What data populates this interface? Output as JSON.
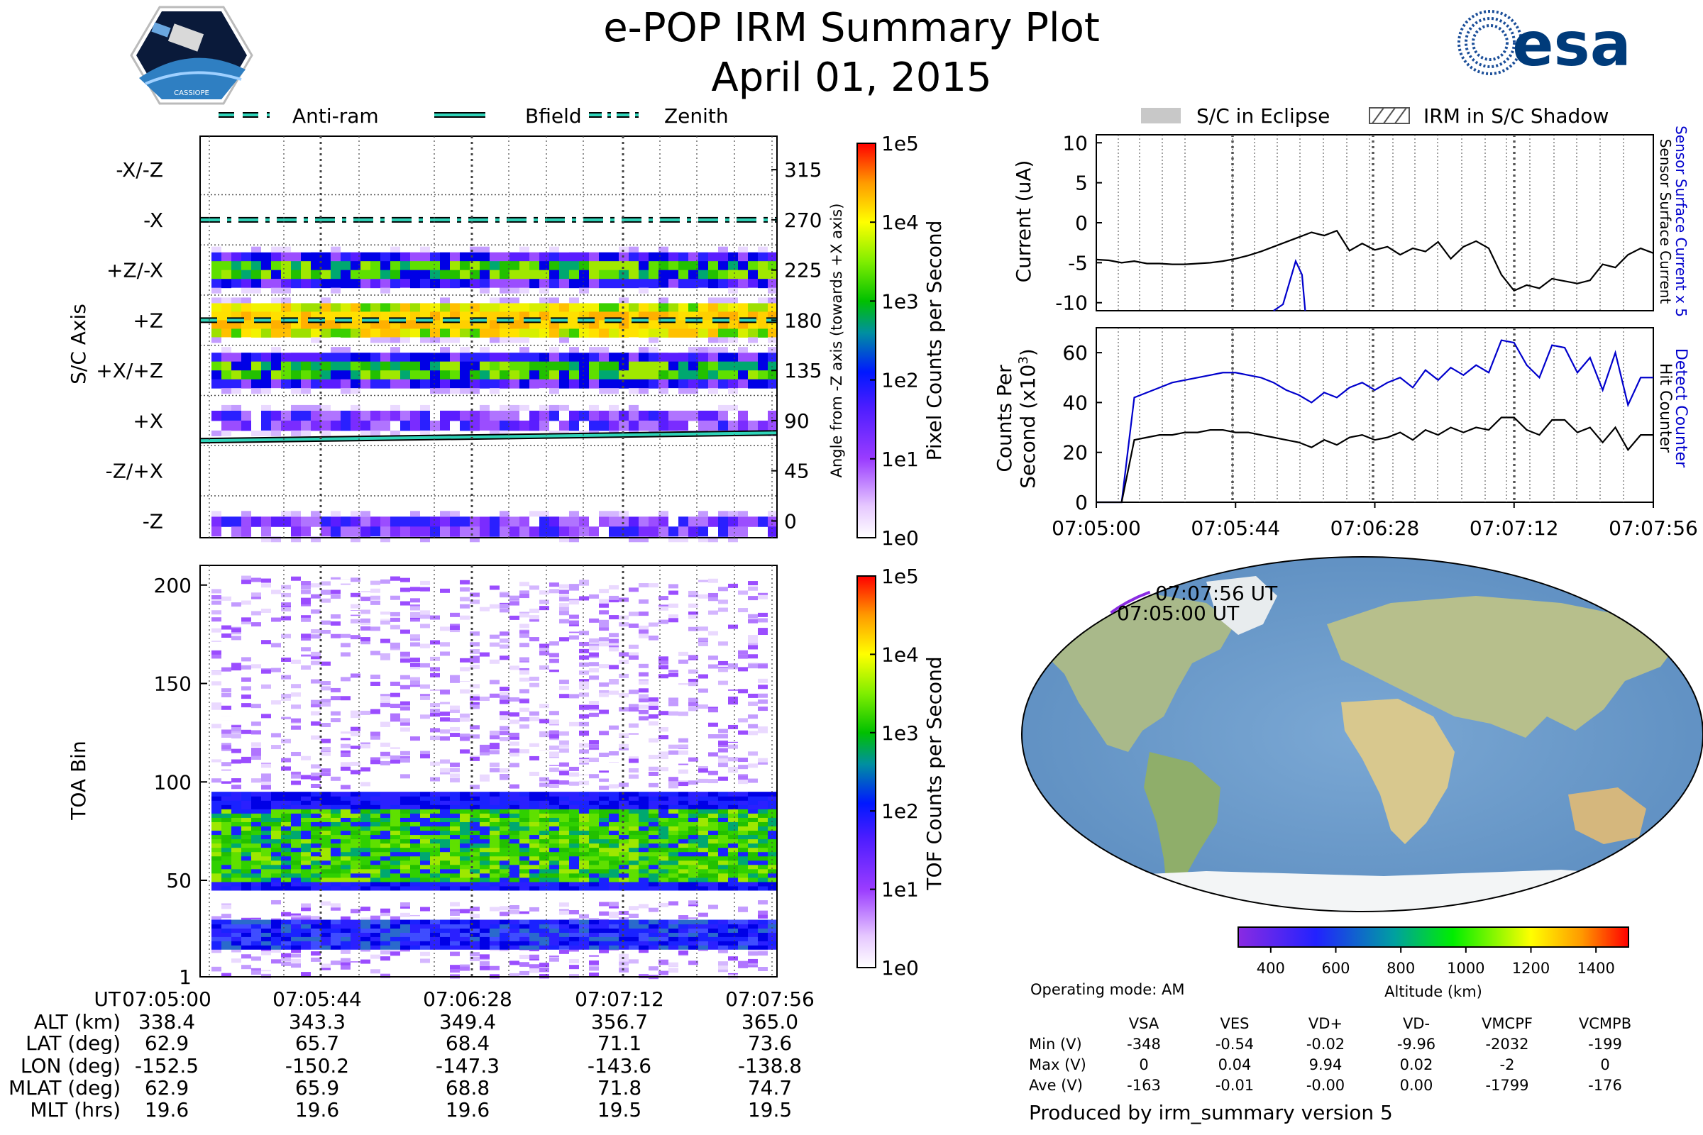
{
  "header": {
    "title": "e-POP IRM Summary Plot",
    "date": "April 01, 2015",
    "left_logo_text": "CASSIOPE",
    "right_logo_text": "esa"
  },
  "left_legend": [
    "Anti-ram",
    "Bfield",
    "Zenith"
  ],
  "right_legend": [
    "S/C in Eclipse",
    "IRM in S/C Shadow"
  ],
  "chart_data": [
    {
      "id": "sc_axis_panel",
      "type": "heatmap",
      "ylabel": "S/C Axis",
      "y2label": "Angle from -Z axis (towards +X axis)",
      "y_tick_labels": [
        "-X/-Z",
        "-X",
        "+Z/-X",
        "+Z",
        "+X/+Z",
        "+X",
        "-Z/+X",
        "-Z"
      ],
      "y2_ticks": [
        315,
        270,
        225,
        180,
        135,
        90,
        45,
        0
      ],
      "ylim": [
        -15,
        345
      ],
      "xlim": [
        "07:05:00",
        "07:07:56"
      ],
      "colorbar_label": "Pixel Counts per Second",
      "colorbar_ticks": [
        "1e5",
        "1e4",
        "1e3",
        "1e2",
        "1e1",
        "1e0"
      ],
      "bands": [
        {
          "angle": 225,
          "level": "mid"
        },
        {
          "angle": 180,
          "level": "high"
        },
        {
          "angle": 135,
          "level": "mid"
        },
        {
          "angle": 90,
          "level": "low"
        },
        {
          "angle": -5,
          "level": "low"
        }
      ],
      "lines": [
        {
          "name": "Zenith",
          "style": "dashdot",
          "angle": [
            270,
            270
          ]
        },
        {
          "name": "Anti-ram",
          "style": "dash",
          "angle": [
            180,
            180
          ]
        },
        {
          "name": "Bfield",
          "style": "solid",
          "angle": [
            72,
            79
          ]
        }
      ]
    },
    {
      "id": "toa_panel",
      "type": "heatmap",
      "ylabel": "TOA Bin",
      "y_ticks": [
        1,
        50,
        100,
        150,
        200
      ],
      "ylim": [
        1,
        210
      ],
      "xlim": [
        "07:05:00",
        "07:07:56"
      ],
      "colorbar_label": "TOF Counts per Second",
      "colorbar_ticks": [
        "1e5",
        "1e4",
        "1e3",
        "1e2",
        "1e1",
        "1e0"
      ],
      "bands": [
        {
          "from": 15,
          "to": 30,
          "level": "low"
        },
        {
          "from": 45,
          "to": 95,
          "level": "mid"
        }
      ]
    },
    {
      "id": "current_panel",
      "type": "line",
      "ylabel": "Current (uA)",
      "y2label_a": "Sensor Surface Current x 5",
      "y2label_b": "Sensor Surface Current",
      "y_ticks": [
        10,
        5,
        0,
        -5,
        -10
      ],
      "ylim": [
        -11,
        11
      ],
      "x_seconds": [
        0,
        4,
        8,
        12,
        16,
        20,
        24,
        28,
        32,
        36,
        40,
        44,
        48,
        52,
        56,
        60,
        64,
        68,
        72,
        76,
        80,
        84,
        88,
        92,
        96,
        100,
        104,
        108,
        112,
        116,
        120,
        124,
        128,
        132,
        136,
        140,
        144,
        148,
        152,
        156,
        160,
        164,
        168,
        172,
        176
      ],
      "series": [
        {
          "name": "Sensor Surface Current",
          "color": "#000000",
          "values": [
            -4.6,
            -4.7,
            -5.0,
            -4.8,
            -5.1,
            -5.1,
            -5.2,
            -5.2,
            -5.1,
            -5.0,
            -4.8,
            -4.5,
            -4.1,
            -3.6,
            -3.0,
            -2.4,
            -1.8,
            -1.2,
            -1.6,
            -1.0,
            -3.5,
            -2.6,
            -3.4,
            -3.0,
            -4.0,
            -3.2,
            -3.6,
            -2.4,
            -4.5,
            -3.0,
            -2.3,
            -3.2,
            -6.5,
            -8.5,
            -7.8,
            -8.2,
            -7.0,
            -7.3,
            -7.6,
            -7.2,
            -5.2,
            -5.6,
            -4.0,
            -3.2,
            -3.8
          ]
        },
        {
          "name": "Sensor Surface Current x 5",
          "color": "#0000cc",
          "x_seconds": [
            56,
            59,
            61,
            63,
            65,
            66
          ],
          "values": [
            -11.0,
            -10.2,
            -7.5,
            -4.8,
            -6.5,
            -11.0
          ]
        }
      ]
    },
    {
      "id": "counts_panel",
      "type": "line",
      "ylabel": "Counts Per Second (x10^3)",
      "y2label_a": "Detect Counter",
      "y2label_b": "Hit Counter",
      "y_ticks": [
        0,
        20,
        40,
        60
      ],
      "ylim": [
        0,
        70
      ],
      "xlim": [
        "07:05:00",
        "07:07:56"
      ],
      "x_tick_labels": [
        "07:05:00",
        "07:05:44",
        "07:06:28",
        "07:07:12",
        "07:07:56"
      ],
      "x_seconds": [
        0,
        4,
        8,
        12,
        16,
        20,
        24,
        28,
        32,
        36,
        40,
        44,
        48,
        52,
        56,
        60,
        64,
        68,
        72,
        76,
        80,
        84,
        88,
        92,
        96,
        100,
        104,
        108,
        112,
        116,
        120,
        124,
        128,
        132,
        136,
        140,
        144,
        148,
        152,
        156,
        160,
        164,
        168,
        172,
        176
      ],
      "series": [
        {
          "name": "Detect Counter",
          "color": "#0000cc",
          "values": [
            0,
            0,
            0,
            42,
            44,
            46,
            48,
            49,
            50,
            51,
            52,
            52,
            51,
            50,
            48,
            45,
            43,
            40,
            44,
            42,
            46,
            48,
            45,
            48,
            50,
            46,
            53,
            49,
            54,
            51,
            55,
            52,
            65,
            64,
            55,
            50,
            63,
            62,
            52,
            58,
            45,
            60,
            39,
            50,
            50
          ]
        },
        {
          "name": "Hit Counter",
          "color": "#000000",
          "values": [
            0,
            0,
            0,
            25,
            26,
            27,
            27,
            28,
            28,
            29,
            29,
            28,
            28,
            27,
            26,
            25,
            24,
            22,
            25,
            23,
            26,
            27,
            25,
            26,
            28,
            25,
            29,
            27,
            30,
            28,
            30,
            29,
            34,
            34,
            29,
            27,
            33,
            33,
            28,
            30,
            24,
            30,
            21,
            27,
            27
          ]
        }
      ]
    },
    {
      "id": "map_panel",
      "type": "scatter",
      "track_labels": [
        "07:07:56 UT",
        "07:05:00 UT"
      ],
      "track_lon": [
        -152.5,
        -150.2,
        -147.3,
        -143.6,
        -138.8
      ],
      "track_lat": [
        62.9,
        65.7,
        68.4,
        71.1,
        73.6
      ],
      "colorbar_label": "Altitude (km)",
      "colorbar_ticks": [
        400,
        600,
        800,
        1000,
        1200,
        1400
      ],
      "colorbar_range": [
        300,
        1500
      ]
    }
  ],
  "bottom_table": {
    "row_labels": [
      "UT",
      "ALT (km)",
      "LAT (deg)",
      "LON (deg)",
      "MLAT (deg)",
      "MLT (hrs)"
    ],
    "columns": [
      [
        "07:05:00",
        "338.4",
        "62.9",
        "-152.5",
        "62.9",
        "19.6"
      ],
      [
        "07:05:44",
        "343.3",
        "65.7",
        "-150.2",
        "65.9",
        "19.6"
      ],
      [
        "07:06:28",
        "349.4",
        "68.4",
        "-147.3",
        "68.8",
        "19.6"
      ],
      [
        "07:07:12",
        "356.7",
        "71.1",
        "-143.6",
        "71.8",
        "19.5"
      ],
      [
        "07:07:56",
        "365.0",
        "73.6",
        "-138.8",
        "74.7",
        "19.5"
      ]
    ]
  },
  "voltages": {
    "operating_mode": "Operating mode: AM",
    "headers": [
      "VSA",
      "VES",
      "VD+",
      "VD-",
      "VMCPF",
      "VCMPB"
    ],
    "rows": [
      {
        "label": "Min (V)",
        "values": [
          "-348",
          "-0.54",
          "-0.02",
          "-9.96",
          "-2032",
          "-199"
        ]
      },
      {
        "label": "Max (V)",
        "values": [
          "0",
          "0.04",
          "9.94",
          "0.02",
          "-2",
          "0"
        ]
      },
      {
        "label": "Ave (V)",
        "values": [
          "-163",
          "-0.01",
          "-0.00",
          "0.00",
          "-1799",
          "-176"
        ]
      }
    ]
  },
  "footer": "Produced by irm_summary version 5",
  "colors": {
    "teal": "#2fd4b9",
    "blue_series": "#0000cc"
  }
}
